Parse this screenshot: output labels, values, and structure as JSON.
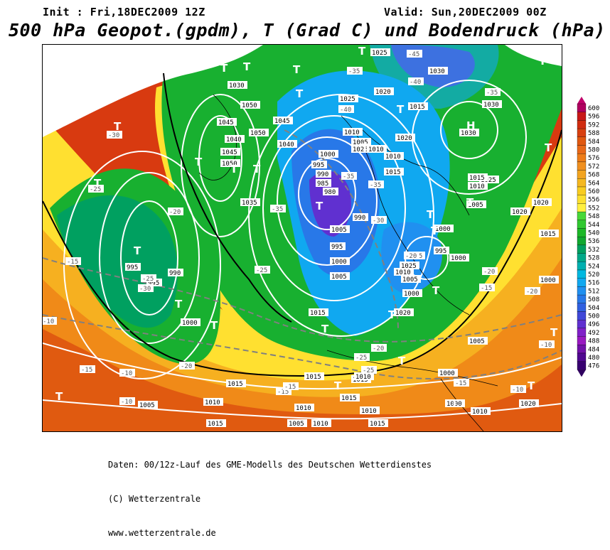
{
  "header": {
    "init": "Init : Fri,18DEC2009 12Z",
    "valid": "Valid: Sun,20DEC2009 00Z",
    "title": "500 hPa Geopot.(gpdm), T (Grad C) und Bodendruck (hPa)"
  },
  "map": {
    "pressure_labels": [
      "1025",
      "1030",
      "1030",
      "1020",
      "1015",
      "1025",
      "1035",
      "1050",
      "1045",
      "1040",
      "1045",
      "1050",
      "1050",
      "1045",
      "1040",
      "1010",
      "1025",
      "1010",
      "1005",
      "1000",
      "995",
      "990",
      "985",
      "980",
      "990",
      "995",
      "1000",
      "1005",
      "1010",
      "1015",
      "1020",
      "1025",
      "1030",
      "1030",
      "1020",
      "1015",
      "1010",
      "1005",
      "1000",
      "995",
      "1000",
      "1005",
      "1015",
      "1020",
      "1025",
      "1020",
      "1015",
      "1010",
      "1005",
      "1000",
      "995",
      "990",
      "995",
      "1000",
      "1015",
      "1015",
      "1010",
      "1005",
      "1010",
      "1005",
      "1015",
      "1010",
      "1015",
      "1000",
      "1000",
      "1010",
      "1020",
      "1015",
      "1000",
      "1005",
      "1010",
      "1015",
      "1010",
      "1015"
    ],
    "temperature_labels": [
      "-45",
      "-40",
      "-35",
      "-35",
      "-40",
      "-35",
      "-30",
      "-25",
      "-25",
      "-30",
      "-20",
      "-15",
      "-10",
      "-15",
      "-20",
      "-25",
      "-30",
      "-35",
      "-35",
      "-35",
      "-25",
      "-25",
      "-20",
      "-15",
      "-10",
      "-10",
      "-15",
      "-20",
      "-20",
      "-15",
      "-10",
      "-10",
      "-15",
      "-20"
    ],
    "low_symbol": "T",
    "high_symbol": "H"
  },
  "legend": {
    "values": [
      "600",
      "596",
      "592",
      "588",
      "584",
      "580",
      "576",
      "572",
      "568",
      "564",
      "560",
      "556",
      "552",
      "548",
      "544",
      "540",
      "536",
      "532",
      "528",
      "524",
      "520",
      "516",
      "512",
      "508",
      "504",
      "500",
      "496",
      "492",
      "488",
      "484",
      "480",
      "476"
    ],
    "colors": [
      "#b00060",
      "#c81818",
      "#d02c10",
      "#d84010",
      "#e05810",
      "#e86818",
      "#ee7c18",
      "#f09020",
      "#f2a420",
      "#f5b820",
      "#f8cc20",
      "#fce030",
      "#fff040",
      "#48d838",
      "#30c830",
      "#1cb828",
      "#10a830",
      "#00a060",
      "#00a888",
      "#00b0b0",
      "#00b8e0",
      "#10a8f0",
      "#2090f0",
      "#2878e8",
      "#3060e0",
      "#4048d8",
      "#6030d0",
      "#8020c8",
      "#9818c0",
      "#7010a8",
      "#500890",
      "#380070"
    ],
    "arrow_top_color": "#c0006a",
    "arrow_bottom_color": "#300060"
  },
  "footer": {
    "line1": "Daten: 00/12z-Lauf des GME-Modells des Deutschen Wetterdienstes",
    "line2": "(C) Wetterzentrale",
    "line3": "www.wetterzentrale.de"
  }
}
